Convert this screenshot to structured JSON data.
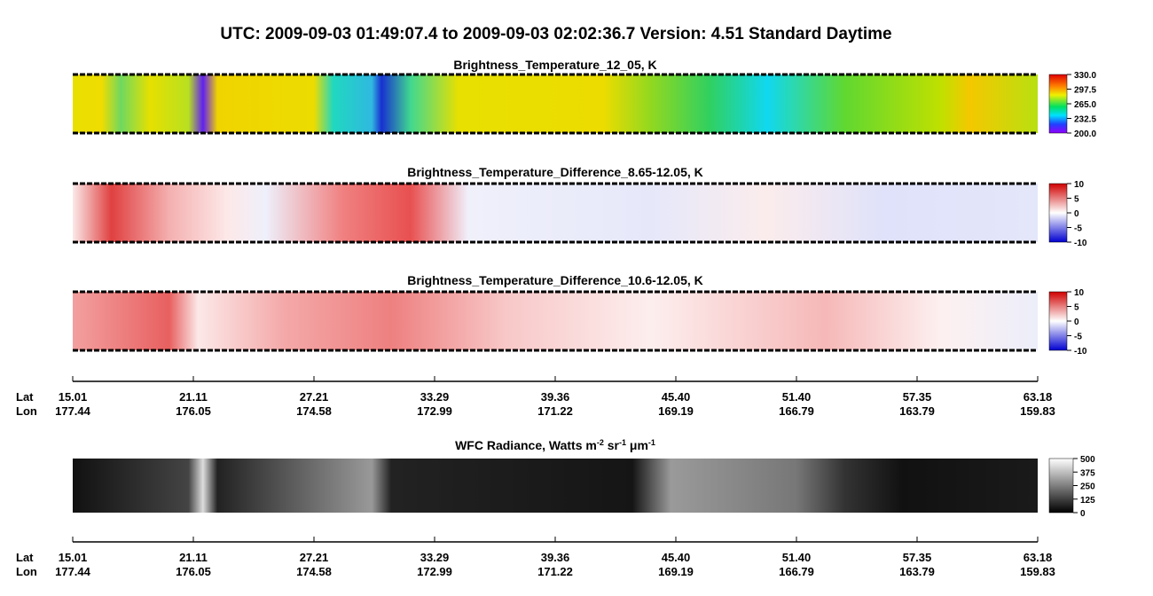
{
  "title": "UTC:  2009-09-03   01:49:07.4  to  2009-09-03   02:02:36.7    Version: 4.51  Standard Daytime",
  "panels": [
    {
      "title_parts": [
        {
          "text": "Brightness_Temperature_12_05, K"
        }
      ],
      "colorbar_ticks": [
        "330.0",
        "297.5",
        "265.0",
        "232.5",
        "200.0"
      ]
    },
    {
      "title_parts": [
        {
          "text": "Brightness_Temperature_Difference_8.65-12.05, K"
        }
      ],
      "colorbar_ticks": [
        "10",
        "5",
        "0",
        "-5",
        "-10"
      ]
    },
    {
      "title_parts": [
        {
          "text": "Brightness_Temperature_Difference_10.6-12.05, K"
        }
      ],
      "colorbar_ticks": [
        "10",
        "5",
        "0",
        "-5",
        "-10"
      ]
    },
    {
      "title_parts": [
        {
          "text": "WFC Radiance, Watts m"
        },
        {
          "text": "-2",
          "sup": true
        },
        {
          "text": " sr"
        },
        {
          "text": "-1",
          "sup": true
        },
        {
          "text": " μm"
        },
        {
          "text": "-1",
          "sup": true
        }
      ],
      "colorbar_ticks": [
        "500",
        "375",
        "250",
        "125",
        "0"
      ]
    }
  ],
  "axes": [
    {
      "lat_label": "Lat",
      "lon_label": "Lon",
      "lat": [
        "15.01",
        "21.11",
        "27.21",
        "33.29",
        "39.36",
        "45.40",
        "51.40",
        "57.35",
        "63.18"
      ],
      "lon": [
        "177.44",
        "176.05",
        "174.58",
        "172.99",
        "171.22",
        "169.19",
        "166.79",
        "163.79",
        "159.83"
      ]
    },
    {
      "lat_label": "Lat",
      "lon_label": "Lon",
      "lat": [
        "15.01",
        "21.11",
        "27.21",
        "33.29",
        "39.36",
        "45.40",
        "51.40",
        "57.35",
        "63.18"
      ],
      "lon": [
        "177.44",
        "176.05",
        "174.58",
        "172.99",
        "171.22",
        "169.19",
        "166.79",
        "163.79",
        "159.83"
      ]
    }
  ]
}
